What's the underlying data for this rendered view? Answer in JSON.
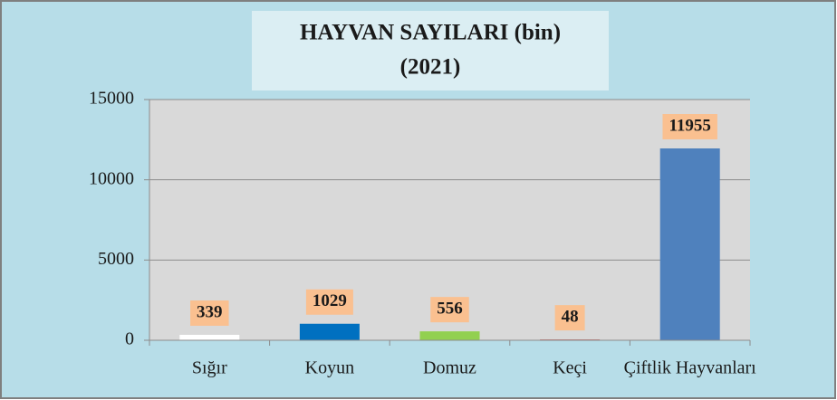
{
  "chart_data": {
    "type": "bar",
    "title": "HAYVAN SAYILARI  (bin)",
    "subtitle": "(2021)",
    "categories": [
      "Sığır",
      "Koyun",
      "Domuz",
      "Keçi",
      "Çiftlik Hayvanları"
    ],
    "values": [
      339,
      1029,
      556,
      48,
      11955
    ],
    "colors": [
      "#ffffff",
      "#0070c0",
      "#92d050",
      "#c0504d",
      "#4f81bd"
    ],
    "ylim": [
      0,
      15000
    ],
    "yticks": [
      0,
      5000,
      10000,
      15000
    ],
    "grid": true
  }
}
